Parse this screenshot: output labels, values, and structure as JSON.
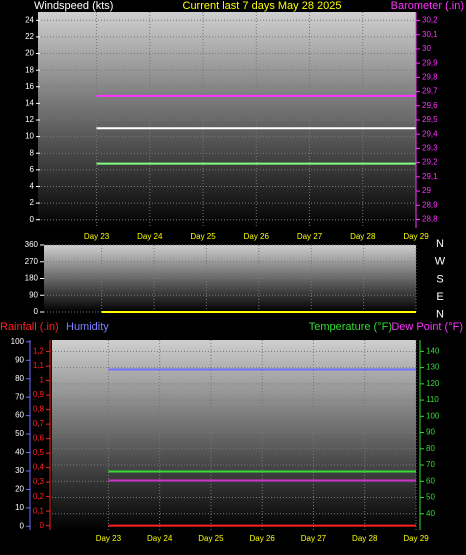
{
  "chart_data": [
    {
      "type": "line",
      "title": "Current last 7 days May 28 2025",
      "ylabel": "Windspeed (kts)",
      "y2label": "Barometer (.in)",
      "categories": [
        "Day 23",
        "Day 24",
        "Day 25",
        "Day 26",
        "Day 27",
        "Day 28",
        "Day 29"
      ],
      "ylim": [
        -1,
        25
      ],
      "yticks": [
        0,
        2,
        4,
        6,
        8,
        10,
        12,
        14,
        16,
        18,
        20,
        22,
        24
      ],
      "y2lim": [
        28.74,
        30.26
      ],
      "y2ticks": [
        {
          "value": 28.8,
          "label": "28,8"
        },
        {
          "value": 28.9,
          "label": "28,9"
        },
        29,
        {
          "value": 29.1,
          "label": "29,1"
        },
        {
          "value": 29.2,
          "label": "29,2"
        },
        {
          "value": 29.3,
          "label": "29,3"
        },
        {
          "value": 29.4,
          "label": "29,4"
        },
        {
          "value": 29.5,
          "label": "29,5"
        },
        {
          "value": 29.6,
          "label": "29,6"
        },
        {
          "value": 29.7,
          "label": "29,7"
        },
        {
          "value": 29.8,
          "label": "29,8"
        },
        {
          "value": 29.9,
          "label": "29,9"
        },
        30,
        {
          "value": 30.1,
          "label": "30,1"
        },
        {
          "value": 30.2,
          "label": "30,2"
        }
      ],
      "grid": true,
      "series": [
        {
          "color": "#ffffff",
          "values": [
            11,
            11,
            11,
            11,
            11,
            11,
            11
          ]
        },
        {
          "color": "#80ff80",
          "values": [
            6.75,
            6.75,
            6.75,
            6.75,
            6.75,
            6.75,
            6.75
          ]
        },
        {
          "color": "#ff33ff",
          "axis": "y2",
          "values": [
            29.67,
            29.67,
            29.67,
            29.67,
            29.67,
            29.67,
            29.67
          ]
        }
      ]
    },
    {
      "type": "line",
      "ylim": [
        0,
        360
      ],
      "yticks": [
        0,
        90,
        180,
        270,
        360
      ],
      "grid": true,
      "direction_labels": [
        "N",
        "W",
        "S",
        "E",
        "N"
      ],
      "series": [
        {
          "color": "#ffff00",
          "values": [
            0,
            0,
            0,
            0,
            0,
            0,
            0
          ]
        }
      ]
    },
    {
      "type": "line",
      "rainfall_label": "Rainfall (.in)",
      "humidity_label": "Humidity",
      "y2label": "Temperature (°F)",
      "dewpoint_label": "Dew Point (°F)",
      "categories": [
        "Day 23",
        "Day 24",
        "Day 25",
        "Day 26",
        "Day 27",
        "Day 28",
        "Day 29"
      ],
      "ylim": [
        -2,
        101
      ],
      "yticks": [
        0,
        10,
        20,
        30,
        40,
        50,
        60,
        70,
        80,
        90,
        100
      ],
      "y3lim": [
        -0.03,
        1.28
      ],
      "y3ticks": [
        0,
        {
          "value": 0.1,
          "label": "0,1"
        },
        {
          "value": 0.2,
          "label": "0,2"
        },
        {
          "value": 0.3,
          "label": "0,3"
        },
        {
          "value": 0.4,
          "label": "0,4"
        },
        {
          "value": 0.5,
          "label": "0,5"
        },
        {
          "value": 0.6,
          "label": "0,6"
        },
        {
          "value": 0.7,
          "label": "0,7"
        },
        {
          "value": 0.8,
          "label": "0,8"
        },
        {
          "value": 0.9,
          "label": "0,9"
        },
        1,
        {
          "value": 1.1,
          "label": "1,1"
        },
        {
          "value": 1.2,
          "label": "1,2"
        }
      ],
      "y2lim": [
        30,
        147
      ],
      "y2ticks": [
        40,
        50,
        60,
        70,
        80,
        90,
        100,
        110,
        120,
        130,
        140
      ],
      "grid": true,
      "series": [
        {
          "color": "#7070ff",
          "values": [
            85,
            85,
            85,
            85,
            85,
            85,
            85
          ]
        },
        {
          "color": "#ff2020",
          "axis": "y3",
          "values": [
            0,
            0,
            0,
            0,
            0,
            0,
            0
          ]
        },
        {
          "color": "#33dd33",
          "axis": "y2",
          "values": [
            66,
            66,
            66,
            66,
            66,
            66,
            66
          ]
        },
        {
          "color": "#cc33cc",
          "axis": "y2",
          "values": [
            60.5,
            60.5,
            60.5,
            60.5,
            60.5,
            60.5,
            60.5
          ]
        }
      ]
    }
  ]
}
